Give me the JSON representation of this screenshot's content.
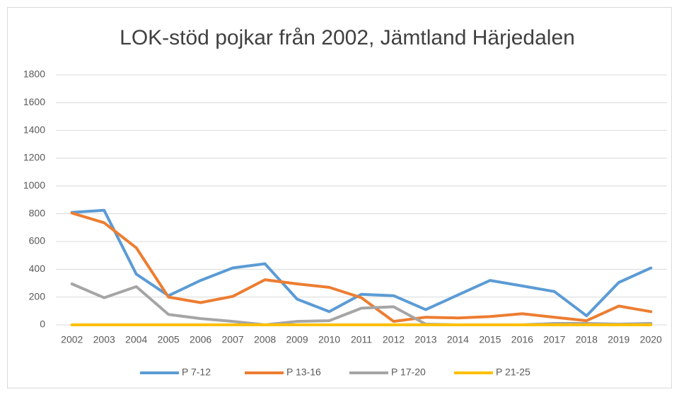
{
  "chart_data": {
    "type": "line",
    "title": "LOK-stöd pojkar från 2002, Jämtland Härjedalen",
    "categories": [
      "2002",
      "2003",
      "2004",
      "2005",
      "2006",
      "2007",
      "2008",
      "2009",
      "2010",
      "2011",
      "2012",
      "2013",
      "2014",
      "2015",
      "2016",
      "2017",
      "2018",
      "2019",
      "2020"
    ],
    "series": [
      {
        "name": "P 7-12",
        "color": "#5b9bd5",
        "values": [
          810,
          825,
          365,
          210,
          320,
          410,
          440,
          185,
          95,
          220,
          210,
          110,
          215,
          320,
          280,
          240,
          65,
          305,
          410
        ]
      },
      {
        "name": "P 13-16",
        "color": "#ed7d31",
        "values": [
          805,
          735,
          555,
          200,
          160,
          205,
          325,
          295,
          270,
          195,
          25,
          55,
          50,
          60,
          80,
          55,
          30,
          135,
          95
        ]
      },
      {
        "name": "P 17-20",
        "color": "#a5a5a5",
        "values": [
          295,
          195,
          275,
          75,
          45,
          25,
          0,
          25,
          30,
          120,
          130,
          5,
          0,
          0,
          0,
          10,
          10,
          5,
          10
        ]
      },
      {
        "name": "P 21-25",
        "color": "#ffc000",
        "values": [
          0,
          0,
          0,
          0,
          0,
          0,
          0,
          0,
          0,
          0,
          0,
          0,
          0,
          0,
          0,
          0,
          0,
          0,
          0
        ]
      }
    ],
    "ylim": [
      0,
      1800
    ],
    "yticks": [
      0,
      200,
      400,
      600,
      800,
      1000,
      1200,
      1400,
      1600,
      1800
    ],
    "grid": true,
    "legend": "bottom"
  }
}
